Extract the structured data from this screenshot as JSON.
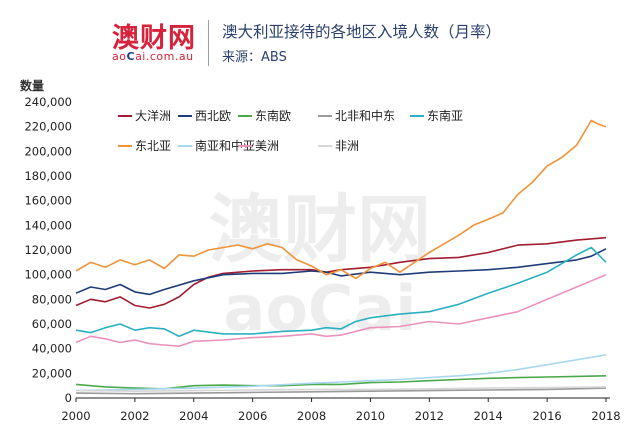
{
  "brand": {
    "cn": "澳财网",
    "en_pre": "ao",
    "en_c": "C",
    "en_post": "ai.com.au"
  },
  "header": {
    "title": "澳大利亚接待的各地区入境人数（月率）",
    "subtitle": "来源：ABS"
  },
  "chart_data": {
    "type": "line",
    "ylabel": "数量",
    "xlim": [
      2000,
      2018
    ],
    "ylim": [
      0,
      240000
    ],
    "x_ticks": [
      "2000",
      "2002",
      "2004",
      "2006",
      "2008",
      "2010",
      "2012",
      "2014",
      "2016",
      "2018"
    ],
    "y_ticks": [
      "0",
      "20,000",
      "40,000",
      "60,000",
      "80,000",
      "100,000",
      "120,000",
      "140,000",
      "160,000",
      "180,000",
      "200,000",
      "220,000",
      "240,000"
    ],
    "grid": false,
    "legend_position": "top-left",
    "series": [
      {
        "name": "大洋洲",
        "color": "#a31d30",
        "points": [
          [
            2000,
            75000
          ],
          [
            2000.5,
            80000
          ],
          [
            2001,
            78000
          ],
          [
            2001.5,
            82000
          ],
          [
            2002,
            75000
          ],
          [
            2002.5,
            73000
          ],
          [
            2003,
            76000
          ],
          [
            2003.5,
            82000
          ],
          [
            2004,
            92000
          ],
          [
            2004.5,
            98000
          ],
          [
            2005,
            101000
          ],
          [
            2006,
            103000
          ],
          [
            2007,
            104000
          ],
          [
            2008,
            104000
          ],
          [
            2008.5,
            102000
          ],
          [
            2009,
            104000
          ],
          [
            2010,
            106000
          ],
          [
            2011,
            110000
          ],
          [
            2012,
            113000
          ],
          [
            2013,
            114000
          ],
          [
            2014,
            118000
          ],
          [
            2015,
            124000
          ],
          [
            2016,
            125000
          ],
          [
            2017,
            128000
          ],
          [
            2018,
            130000
          ]
        ]
      },
      {
        "name": "西北欧",
        "color": "#1f3c7a",
        "points": [
          [
            2000,
            85000
          ],
          [
            2000.5,
            90000
          ],
          [
            2001,
            88000
          ],
          [
            2001.5,
            92000
          ],
          [
            2002,
            86000
          ],
          [
            2002.5,
            84000
          ],
          [
            2003,
            88000
          ],
          [
            2004,
            95000
          ],
          [
            2005,
            100000
          ],
          [
            2006,
            101000
          ],
          [
            2007,
            101000
          ],
          [
            2008,
            103000
          ],
          [
            2008.5,
            102000
          ],
          [
            2009,
            99000
          ],
          [
            2010,
            102000
          ],
          [
            2011,
            100000
          ],
          [
            2012,
            102000
          ],
          [
            2013,
            103000
          ],
          [
            2014,
            104000
          ],
          [
            2015,
            106000
          ],
          [
            2016,
            109000
          ],
          [
            2017,
            112000
          ],
          [
            2017.5,
            115000
          ],
          [
            2018,
            121000
          ]
        ]
      },
      {
        "name": "东南欧",
        "color": "#4aa84a",
        "points": [
          [
            2000,
            11000
          ],
          [
            2001,
            9000
          ],
          [
            2002,
            8000
          ],
          [
            2003,
            7500
          ],
          [
            2004,
            10000
          ],
          [
            2005,
            10500
          ],
          [
            2006,
            10000
          ],
          [
            2007,
            10000
          ],
          [
            2008,
            11000
          ],
          [
            2009,
            11000
          ],
          [
            2010,
            12500
          ],
          [
            2011,
            13000
          ],
          [
            2012,
            14000
          ],
          [
            2013,
            15000
          ],
          [
            2014,
            16000
          ],
          [
            2015,
            16500
          ],
          [
            2016,
            17000
          ],
          [
            2017,
            17500
          ],
          [
            2018,
            18000
          ]
        ]
      },
      {
        "name": "北非和中东",
        "color": "#9a9a9a",
        "points": [
          [
            2000,
            4000
          ],
          [
            2002,
            3500
          ],
          [
            2004,
            4000
          ],
          [
            2006,
            4500
          ],
          [
            2008,
            5000
          ],
          [
            2010,
            5500
          ],
          [
            2012,
            6000
          ],
          [
            2014,
            6500
          ],
          [
            2016,
            7000
          ],
          [
            2018,
            8000
          ]
        ]
      },
      {
        "name": "东南亚",
        "color": "#2bb0c2",
        "points": [
          [
            2000,
            55000
          ],
          [
            2000.5,
            53000
          ],
          [
            2001,
            57000
          ],
          [
            2001.5,
            60000
          ],
          [
            2002,
            55000
          ],
          [
            2002.5,
            57000
          ],
          [
            2003,
            56000
          ],
          [
            2003.5,
            50000
          ],
          [
            2004,
            55000
          ],
          [
            2005,
            52000
          ],
          [
            2006,
            52000
          ],
          [
            2007,
            54000
          ],
          [
            2008,
            55000
          ],
          [
            2008.5,
            57000
          ],
          [
            2009,
            56000
          ],
          [
            2009.5,
            62000
          ],
          [
            2010,
            65000
          ],
          [
            2011,
            68000
          ],
          [
            2012,
            70000
          ],
          [
            2013,
            76000
          ],
          [
            2014,
            85000
          ],
          [
            2015,
            93000
          ],
          [
            2016,
            102000
          ],
          [
            2017,
            116000
          ],
          [
            2017.5,
            122000
          ],
          [
            2018,
            110000
          ]
        ]
      },
      {
        "name": "东北亚",
        "color": "#f0933a",
        "points": [
          [
            2000,
            103000
          ],
          [
            2000.5,
            110000
          ],
          [
            2001,
            106000
          ],
          [
            2001.5,
            112000
          ],
          [
            2002,
            108000
          ],
          [
            2002.5,
            112000
          ],
          [
            2003,
            105000
          ],
          [
            2003.5,
            116000
          ],
          [
            2004,
            115000
          ],
          [
            2004.5,
            120000
          ],
          [
            2005,
            122000
          ],
          [
            2005.5,
            124000
          ],
          [
            2006,
            121000
          ],
          [
            2006.5,
            125000
          ],
          [
            2007,
            122000
          ],
          [
            2007.5,
            112000
          ],
          [
            2008,
            107000
          ],
          [
            2008.5,
            100000
          ],
          [
            2009,
            104000
          ],
          [
            2009.5,
            97000
          ],
          [
            2010,
            105000
          ],
          [
            2010.5,
            110000
          ],
          [
            2011,
            102000
          ],
          [
            2011.5,
            110000
          ],
          [
            2012,
            118000
          ],
          [
            2012.5,
            125000
          ],
          [
            2013,
            132000
          ],
          [
            2013.5,
            140000
          ],
          [
            2014,
            145000
          ],
          [
            2014.5,
            150000
          ],
          [
            2015,
            165000
          ],
          [
            2015.5,
            175000
          ],
          [
            2016,
            188000
          ],
          [
            2016.5,
            195000
          ],
          [
            2017,
            205000
          ],
          [
            2017.5,
            225000
          ],
          [
            2017.75,
            222000
          ],
          [
            2018,
            220000
          ]
        ]
      },
      {
        "name": "南亚和中亚",
        "color": "#a9d8ee",
        "points": [
          [
            2000,
            6000
          ],
          [
            2002,
            7000
          ],
          [
            2004,
            8000
          ],
          [
            2006,
            9500
          ],
          [
            2008,
            12000
          ],
          [
            2009,
            13000
          ],
          [
            2010,
            14000
          ],
          [
            2011,
            15000
          ],
          [
            2012,
            16500
          ],
          [
            2013,
            18000
          ],
          [
            2014,
            20000
          ],
          [
            2015,
            23000
          ],
          [
            2016,
            27000
          ],
          [
            2017,
            31000
          ],
          [
            2018,
            35000
          ]
        ]
      },
      {
        "name": "美洲",
        "color": "#eb92bc",
        "points": [
          [
            2000,
            45000
          ],
          [
            2000.5,
            50000
          ],
          [
            2001,
            48000
          ],
          [
            2001.5,
            45000
          ],
          [
            2002,
            47000
          ],
          [
            2002.5,
            44000
          ],
          [
            2003,
            43000
          ],
          [
            2003.5,
            42000
          ],
          [
            2004,
            46000
          ],
          [
            2005,
            47000
          ],
          [
            2006,
            49000
          ],
          [
            2007,
            50000
          ],
          [
            2008,
            52000
          ],
          [
            2008.5,
            50000
          ],
          [
            2009,
            51000
          ],
          [
            2010,
            57000
          ],
          [
            2011,
            58000
          ],
          [
            2012,
            62000
          ],
          [
            2013,
            60000
          ],
          [
            2014,
            65000
          ],
          [
            2015,
            70000
          ],
          [
            2016,
            80000
          ],
          [
            2017,
            90000
          ],
          [
            2017.5,
            95000
          ],
          [
            2018,
            100000
          ]
        ]
      },
      {
        "name": "非洲",
        "color": "#d6d6d6",
        "points": [
          [
            2000,
            6000
          ],
          [
            2002,
            5500
          ],
          [
            2004,
            6000
          ],
          [
            2006,
            6500
          ],
          [
            2008,
            7000
          ],
          [
            2010,
            7000
          ],
          [
            2012,
            7500
          ],
          [
            2014,
            8000
          ],
          [
            2016,
            8500
          ],
          [
            2018,
            9000
          ]
        ]
      }
    ]
  }
}
